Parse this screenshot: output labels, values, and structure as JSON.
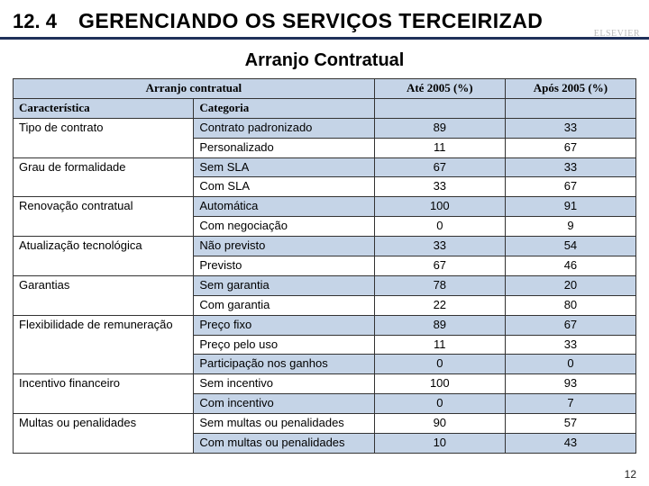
{
  "header": {
    "section_number": "12. 4",
    "section_title": "GERENCIANDO OS SERVIÇOS TERCEIRIZAD",
    "watermark": "ELSEVIER"
  },
  "subtitle": "Arranjo Contratual",
  "table": {
    "header_row1": {
      "span_label": "Arranjo contratual",
      "col3": "Até 2005 (%)",
      "col4": "Após 2005 (%)"
    },
    "header_row2": {
      "col1": "Característica",
      "col2": "Categoria"
    },
    "colors": {
      "stripe_bg": "#c5d4e7",
      "border": "#333333",
      "header_bg": "#c5d4e7"
    },
    "groups": [
      {
        "characteristic": "Tipo de contrato",
        "rows": [
          {
            "category": "Contrato padronizado",
            "v1": "89",
            "v2": "33",
            "stripe": true
          },
          {
            "category": "Personalizado",
            "v1": "11",
            "v2": "67",
            "stripe": false
          }
        ]
      },
      {
        "characteristic": "Grau de formalidade",
        "rows": [
          {
            "category": "Sem SLA",
            "v1": "67",
            "v2": "33",
            "stripe": true
          },
          {
            "category": "Com SLA",
            "v1": "33",
            "v2": "67",
            "stripe": false
          }
        ]
      },
      {
        "characteristic": "Renovação contratual",
        "rows": [
          {
            "category": "Automática",
            "v1": "100",
            "v2": "91",
            "stripe": true
          },
          {
            "category": "Com negociação",
            "v1": "0",
            "v2": "9",
            "stripe": false
          }
        ]
      },
      {
        "characteristic": "Atualização tecnológica",
        "rows": [
          {
            "category": "Não previsto",
            "v1": "33",
            "v2": "54",
            "stripe": true
          },
          {
            "category": "Previsto",
            "v1": "67",
            "v2": "46",
            "stripe": false
          }
        ]
      },
      {
        "characteristic": "Garantias",
        "rows": [
          {
            "category": "Sem garantia",
            "v1": "78",
            "v2": "20",
            "stripe": true
          },
          {
            "category": "Com garantia",
            "v1": "22",
            "v2": "80",
            "stripe": false
          }
        ]
      },
      {
        "characteristic": "Flexibilidade de remuneração",
        "rows": [
          {
            "category": "Preço fixo",
            "v1": "89",
            "v2": "67",
            "stripe": true
          },
          {
            "category": "Preço pelo uso",
            "v1": "11",
            "v2": "33",
            "stripe": false
          },
          {
            "category": "Participação nos ganhos",
            "v1": "0",
            "v2": "0",
            "stripe": true
          }
        ]
      },
      {
        "characteristic": "Incentivo financeiro",
        "rows": [
          {
            "category": "Sem incentivo",
            "v1": "100",
            "v2": "93",
            "stripe": false
          },
          {
            "category": "Com incentivo",
            "v1": "0",
            "v2": "7",
            "stripe": true
          }
        ]
      },
      {
        "characteristic": "Multas ou penalidades",
        "rows": [
          {
            "category": "Sem multas ou penalidades",
            "v1": "90",
            "v2": "57",
            "stripe": false
          },
          {
            "category": "Com multas ou penalidades",
            "v1": "10",
            "v2": "43",
            "stripe": true
          }
        ]
      }
    ]
  },
  "footer": {
    "page_number": "12"
  }
}
